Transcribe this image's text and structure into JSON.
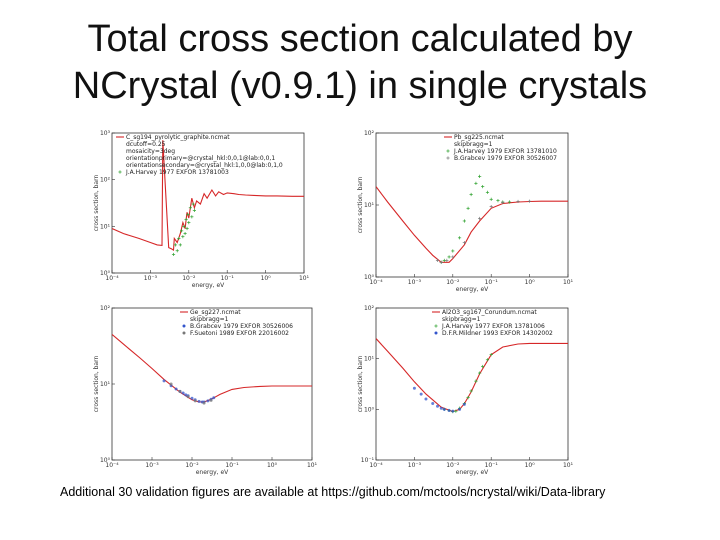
{
  "slide": {
    "title_line1": "Total cross section calculated by",
    "title_line2": "NCrystal (v0.9.1) in single crystals",
    "footer": "Additional 30 validation figures are available at https://github.com/mctools/ncrystal/wiki/Data-library"
  },
  "colors": {
    "calc": "#d62728",
    "exp_green": "#2ca02c",
    "exp_blue": "#3355cc",
    "exp_gray": "#777777"
  },
  "chart_data": [
    {
      "type": "line",
      "id": "c-graphite",
      "xlabel": "energy, eV",
      "ylabel": "cross section, barn",
      "x_scale": "log",
      "y_scale": "log",
      "xlim": [
        0.0001,
        10
      ],
      "ylim": [
        1,
        1000
      ],
      "x_tick_labels": [
        "10⁻⁴",
        "10⁻³",
        "10⁻²",
        "10⁻¹",
        "10⁰",
        "10¹"
      ],
      "y_tick_labels": [
        "10⁰",
        "10¹",
        "10²",
        "10³"
      ],
      "legend_position": "top-left",
      "legend": [
        "C_sg194_pyrolytic_graphite.ncmat",
        "dcutoff=0.25",
        "mosaicity=3deg",
        "orientationprimary=@crystal_hkl:0,0,1@lab:0,0,1",
        "orientationsecondary=@crystal_hkl:1,0,0@lab:0,1,0",
        "J.A.Harvey 1977 EXFOR 13781003"
      ],
      "series": [
        {
          "name": "C_sg194_pyrolytic_graphite.ncmat",
          "kind": "calc",
          "x": [
            0.0001,
            0.0002,
            0.0005,
            0.001,
            0.0015,
            0.002,
            0.0021,
            0.003,
            0.0035,
            0.004,
            0.0042,
            0.005,
            0.006,
            0.007,
            0.008,
            0.009,
            0.01,
            0.012,
            0.014,
            0.016,
            0.02,
            0.025,
            0.03,
            0.04,
            0.05,
            0.06,
            0.08,
            0.1,
            0.15,
            0.2,
            0.3,
            0.5,
            1,
            2,
            5,
            10
          ],
          "y": [
            9,
            7,
            5.5,
            4.5,
            4,
            3.9,
            700,
            3.5,
            3.3,
            3.1,
            5.5,
            4.5,
            7,
            12,
            9,
            20,
            15,
            40,
            25,
            35,
            30,
            50,
            40,
            60,
            45,
            55,
            48,
            52,
            50,
            48,
            47,
            46,
            45,
            45,
            44,
            44
          ]
        },
        {
          "name": "J.A.Harvey 1977 EXFOR 13781003",
          "kind": "exp",
          "x": [
            0.004,
            0.0045,
            0.005,
            0.0055,
            0.006,
            0.0065,
            0.007,
            0.0075,
            0.008,
            0.0085,
            0.009,
            0.0095,
            0.01,
            0.011,
            0.012,
            0.013,
            0.014
          ],
          "y": [
            2.5,
            4.0,
            3.0,
            5.5,
            4.0,
            8.0,
            6.0,
            10.0,
            7.0,
            14.0,
            9.0,
            18.0,
            12.0,
            25.0,
            16.0,
            30.0,
            22.0
          ]
        }
      ]
    },
    {
      "type": "line",
      "id": "c-lead",
      "xlabel": "energy, eV",
      "ylabel": "cross section, barn",
      "x_scale": "log",
      "y_scale": "log",
      "xlim": [
        0.0001,
        10
      ],
      "ylim": [
        1,
        100
      ],
      "x_tick_labels": [
        "10⁻⁴",
        "10⁻³",
        "10⁻²",
        "10⁻¹",
        "10⁰",
        "10¹"
      ],
      "y_tick_labels": [
        "10⁰",
        "10¹",
        "10²"
      ],
      "legend_position": "top-right",
      "legend": [
        "Pb_sg225.ncmat",
        "skipbragg=1",
        "J.A.Harvey 1979 EXFOR 13781010",
        "B.Grabcev 1979 EXFOR 30526007"
      ],
      "series": [
        {
          "name": "Pb_sg225.ncmat",
          "kind": "calc",
          "x": [
            0.0001,
            0.0002,
            0.0005,
            0.001,
            0.002,
            0.003,
            0.005,
            0.008,
            0.01,
            0.02,
            0.03,
            0.05,
            0.1,
            0.2,
            0.5,
            1,
            2,
            10
          ],
          "y": [
            18,
            11,
            6,
            3.8,
            2.5,
            2.0,
            1.6,
            1.6,
            1.8,
            2.8,
            4.2,
            6.0,
            9.0,
            10.5,
            11,
            11.2,
            11.3,
            11.3
          ]
        },
        {
          "name": "J.A.Harvey 1979 EXFOR 13781010",
          "kind": "exp",
          "x": [
            0.005,
            0.006,
            0.008,
            0.01,
            0.015,
            0.02,
            0.025,
            0.03,
            0.04,
            0.05,
            0.06,
            0.08,
            0.1,
            0.15,
            0.2,
            0.3
          ],
          "y": [
            1.6,
            1.7,
            1.9,
            2.3,
            3.5,
            6.0,
            9.0,
            14.0,
            20.0,
            25.0,
            18.0,
            15.0,
            12.0,
            11.5,
            11.0,
            11.0
          ]
        },
        {
          "name": "B.Grabcev 1979 EXFOR 30526007",
          "kind": "exp2",
          "x": [
            0.004,
            0.005,
            0.007,
            0.01,
            0.02,
            0.05,
            0.1,
            0.2,
            0.5,
            1.0
          ],
          "y": [
            1.7,
            1.6,
            1.7,
            1.9,
            3.0,
            6.5,
            9.5,
            10.8,
            11.2,
            11.3
          ]
        }
      ]
    },
    {
      "type": "line",
      "id": "c-germanium",
      "xlabel": "energy, eV",
      "ylabel": "cross section, barn",
      "x_scale": "log",
      "y_scale": "log",
      "xlim": [
        0.0001,
        10
      ],
      "ylim": [
        1,
        100
      ],
      "x_tick_labels": [
        "10⁻⁴",
        "10⁻³",
        "10⁻²",
        "10⁻¹",
        "10⁰",
        "10¹"
      ],
      "y_tick_labels": [
        "10⁰",
        "10¹",
        "10²"
      ],
      "legend_position": "top-right",
      "legend": [
        "Ge_sg227.ncmat",
        "skipbragg=1",
        "B.Grabcev 1979 EXFOR 30526006",
        "F.Suetoni 1989 EXFOR 22016002"
      ],
      "series": [
        {
          "name": "Ge_sg227.ncmat",
          "kind": "calc",
          "x": [
            0.0001,
            0.0002,
            0.0005,
            0.001,
            0.002,
            0.005,
            0.01,
            0.015,
            0.02,
            0.03,
            0.05,
            0.1,
            0.2,
            0.5,
            1,
            2,
            5,
            10
          ],
          "y": [
            45,
            33,
            22,
            16,
            11.5,
            7.8,
            6.2,
            5.8,
            5.8,
            6.3,
            7.3,
            8.5,
            9.0,
            9.3,
            9.4,
            9.4,
            9.4,
            9.4
          ]
        },
        {
          "name": "B.Grabcev 1979 EXFOR 30526006",
          "kind": "exp_blue",
          "x": [
            0.002,
            0.003,
            0.004,
            0.005,
            0.006,
            0.007,
            0.008,
            0.01,
            0.012,
            0.015,
            0.018,
            0.02,
            0.025,
            0.03,
            0.035
          ],
          "y": [
            11,
            9.5,
            8.6,
            8.0,
            7.6,
            7.2,
            7.0,
            6.5,
            6.2,
            5.9,
            5.8,
            5.8,
            6.0,
            6.3,
            6.6
          ]
        },
        {
          "name": "F.Suetoni 1989 EXFOR 22016002",
          "kind": "exp_gray",
          "x": [
            0.003,
            0.005,
            0.008,
            0.012,
            0.02,
            0.03
          ],
          "y": [
            10,
            8.0,
            6.8,
            6.0,
            5.6,
            6.1
          ]
        }
      ]
    },
    {
      "type": "line",
      "id": "c-alumina",
      "xlabel": "energy, eV",
      "ylabel": "cross section, barn",
      "x_scale": "log",
      "y_scale": "log",
      "xlim": [
        0.0001,
        10
      ],
      "ylim": [
        0.1,
        100
      ],
      "x_tick_labels": [
        "10⁻⁴",
        "10⁻³",
        "10⁻²",
        "10⁻¹",
        "10⁰",
        "10¹"
      ],
      "y_tick_labels": [
        "10⁻¹",
        "10⁰",
        "10¹",
        "10²"
      ],
      "legend_position": "top-right",
      "legend": [
        "Al2O3_sg167_Corundum.ncmat",
        "skipbragg=1",
        "J.A.Harvey 1977 EXFOR 13781006",
        "D.F.R.Mildner 1993 EXFOR 14302002"
      ],
      "series": [
        {
          "name": "Al2O3_sg167_Corundum.ncmat",
          "kind": "calc",
          "x": [
            0.0001,
            0.0002,
            0.0005,
            0.001,
            0.002,
            0.005,
            0.01,
            0.015,
            0.02,
            0.03,
            0.05,
            0.1,
            0.2,
            0.5,
            1,
            2,
            10
          ],
          "y": [
            25,
            14,
            6.5,
            3.5,
            2.0,
            1.1,
            0.9,
            1.0,
            1.3,
            2.2,
            5.0,
            12,
            17,
            19.5,
            20,
            20,
            20
          ]
        },
        {
          "name": "J.A.Harvey 1977 EXFOR 13781006",
          "kind": "exp",
          "x": [
            0.006,
            0.008,
            0.01,
            0.012,
            0.015,
            0.02,
            0.025,
            0.03,
            0.04,
            0.05,
            0.06,
            0.08,
            0.1
          ],
          "y": [
            1.0,
            0.95,
            0.9,
            0.92,
            1.05,
            1.3,
            1.7,
            2.3,
            3.6,
            5.2,
            7.0,
            9.5,
            12.0
          ]
        },
        {
          "name": "D.F.R.Mildner 1993 EXFOR 14302002",
          "kind": "exp_blue",
          "x": [
            0.001,
            0.0015,
            0.002,
            0.003,
            0.004,
            0.005,
            0.006,
            0.008,
            0.01,
            0.015,
            0.02
          ],
          "y": [
            2.6,
            2.0,
            1.6,
            1.3,
            1.15,
            1.05,
            1.0,
            0.95,
            0.92,
            1.0,
            1.25
          ]
        }
      ]
    }
  ]
}
